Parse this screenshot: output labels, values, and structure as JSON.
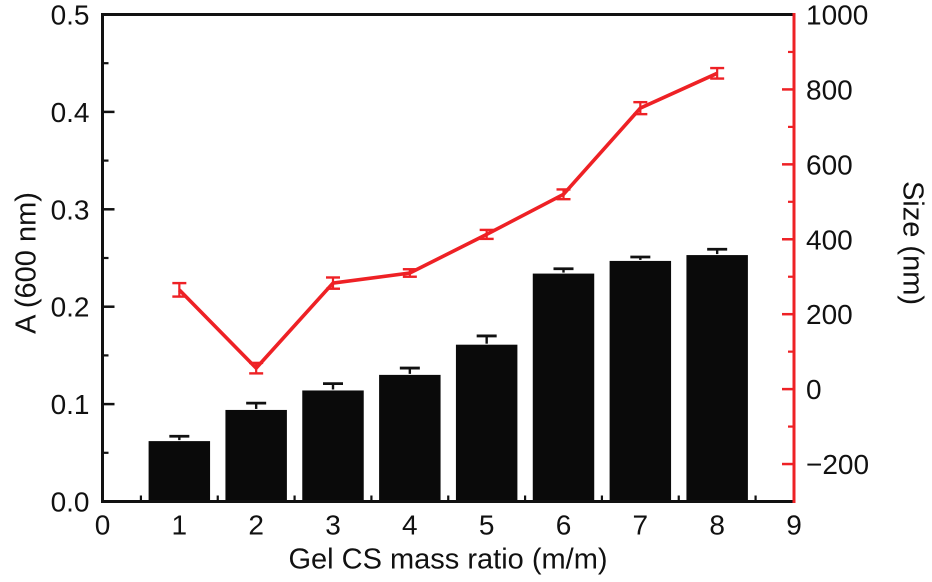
{
  "colors": {
    "axis_black": "#111111",
    "bar_fill": "#0a0a0a",
    "line_red": "#ee2125",
    "background": "#ffffff",
    "tick_label": "#111111"
  },
  "chart_data": {
    "type": "bar",
    "subtype": "dual-axis bar + line with error bars",
    "title": "",
    "categories": [
      1,
      2,
      3,
      4,
      5,
      6,
      7,
      8
    ],
    "xlabel": "Gel CS mass ratio (m/m)",
    "x_axis": {
      "min": 0,
      "max": 9,
      "major_ticks": [
        0,
        1,
        2,
        3,
        4,
        5,
        6,
        7,
        8,
        9
      ],
      "tick_labels": [
        "0",
        "1",
        "2",
        "3",
        "4",
        "5",
        "6",
        "7",
        "8",
        "9"
      ],
      "minor_step": 0.5
    },
    "left_axis": {
      "label": "A (600 nm)",
      "min": 0.0,
      "max": 0.5,
      "major_ticks": [
        0.0,
        0.1,
        0.2,
        0.3,
        0.4,
        0.5
      ],
      "tick_labels": [
        "0.0",
        "0.1",
        "0.2",
        "0.3",
        "0.4",
        "0.5"
      ],
      "minor_step": 0.05,
      "axis_color": "#111111"
    },
    "right_axis": {
      "label": "Size (nm)",
      "min": -300,
      "max": 1000,
      "major_ticks": [
        -200,
        0,
        200,
        400,
        600,
        800,
        1000
      ],
      "tick_labels": [
        "−200",
        "0",
        "200",
        "400",
        "600",
        "800",
        "1000"
      ],
      "minor_ticks": [
        -100,
        100,
        300,
        500,
        700,
        900
      ],
      "axis_color": "#ee2125",
      "tick_label_color": "#111111"
    },
    "series": [
      {
        "name": "A (600 nm)",
        "type": "bar",
        "axis": "left",
        "color": "#0a0a0a",
        "bar_width_ratio": 0.8,
        "values": [
          0.062,
          0.094,
          0.114,
          0.13,
          0.161,
          0.234,
          0.247,
          0.253
        ],
        "errors": [
          0.005,
          0.007,
          0.007,
          0.007,
          0.009,
          0.005,
          0.004,
          0.006
        ]
      },
      {
        "name": "Size (nm)",
        "type": "line",
        "axis": "right",
        "color": "#ee2125",
        "values": [
          265,
          56,
          283,
          310,
          413,
          520,
          750,
          843
        ],
        "errors": [
          18,
          14,
          15,
          10,
          12,
          13,
          16,
          14
        ]
      }
    ],
    "grid": false,
    "legend": "none"
  }
}
